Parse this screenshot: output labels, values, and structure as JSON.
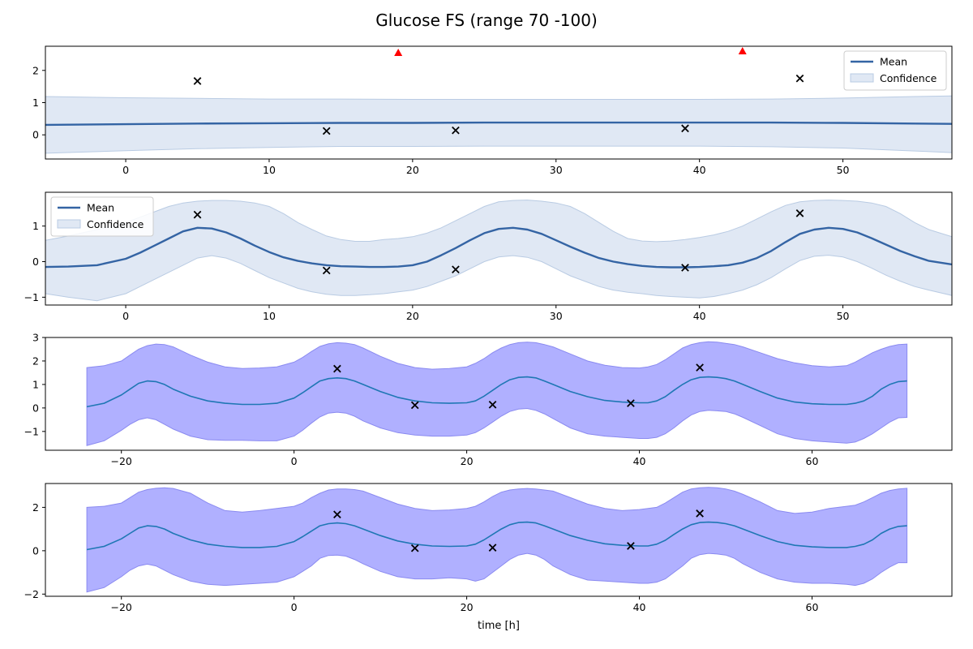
{
  "figure_title": "Glucose FS (range 70 -100)",
  "chart_data": [
    {
      "type": "line",
      "panel": 1,
      "xlim": [
        -5.6,
        57.6
      ],
      "ylim": [
        -0.75,
        2.75
      ],
      "xticks": [
        0,
        10,
        20,
        30,
        40,
        50
      ],
      "yticks": [
        0,
        1,
        2
      ],
      "xlabel": "",
      "legend": {
        "position": "upper right",
        "entries": [
          "Mean",
          "Confidence"
        ]
      },
      "mean": {
        "name": "Mean",
        "color": "#3464a4",
        "x": [
          -5.6,
          0,
          5,
          10,
          15,
          20,
          25,
          30,
          35,
          40,
          45,
          50,
          55,
          57.6
        ],
        "y": [
          0.31,
          0.33,
          0.35,
          0.36,
          0.37,
          0.37,
          0.38,
          0.38,
          0.38,
          0.38,
          0.38,
          0.37,
          0.35,
          0.34
        ]
      },
      "confidence": {
        "name": "Confidence",
        "color": "#c7d6eb",
        "x": [
          -5.6,
          0,
          5,
          10,
          15,
          20,
          25,
          30,
          35,
          40,
          45,
          50,
          55,
          57.6
        ],
        "lower": [
          -0.57,
          -0.49,
          -0.43,
          -0.39,
          -0.36,
          -0.36,
          -0.35,
          -0.35,
          -0.35,
          -0.35,
          -0.37,
          -0.41,
          -0.5,
          -0.55
        ],
        "upper": [
          1.19,
          1.15,
          1.13,
          1.11,
          1.11,
          1.1,
          1.1,
          1.1,
          1.1,
          1.1,
          1.11,
          1.14,
          1.19,
          1.21
        ]
      },
      "observations": {
        "x": [
          5,
          14,
          23,
          39,
          47
        ],
        "y": [
          1.67,
          0.12,
          0.14,
          0.2,
          1.75
        ]
      },
      "flags": {
        "color": "#ff0000",
        "x": [
          19,
          43
        ],
        "y": [
          2.55,
          2.6
        ]
      }
    },
    {
      "type": "line",
      "panel": 2,
      "xlim": [
        -5.6,
        57.6
      ],
      "ylim": [
        -1.22,
        1.95
      ],
      "xticks": [
        0,
        10,
        20,
        30,
        40,
        50
      ],
      "yticks": [
        -1,
        0,
        1
      ],
      "xlabel": "",
      "legend": {
        "position": "upper left",
        "entries": [
          "Mean",
          "Confidence"
        ]
      },
      "mean": {
        "name": "Mean",
        "color": "#3464a4",
        "x": [
          -5.6,
          -4,
          -2,
          0,
          1,
          2,
          3,
          4,
          5,
          6,
          7,
          8,
          9,
          10,
          11,
          12,
          13,
          14,
          15,
          16,
          17,
          18,
          19,
          20,
          21,
          22,
          23,
          24,
          25,
          26,
          27,
          28,
          29,
          30,
          31,
          32,
          33,
          34,
          35,
          36,
          37,
          38,
          39,
          40,
          41,
          42,
          43,
          44,
          45,
          46,
          47,
          48,
          49,
          50,
          51,
          52,
          53,
          54,
          55,
          56,
          57.6
        ],
        "y": [
          -0.15,
          -0.14,
          -0.1,
          0.08,
          0.25,
          0.45,
          0.65,
          0.85,
          0.95,
          0.93,
          0.82,
          0.65,
          0.45,
          0.27,
          0.12,
          0.02,
          -0.05,
          -0.1,
          -0.13,
          -0.14,
          -0.15,
          -0.15,
          -0.14,
          -0.1,
          0.0,
          0.18,
          0.38,
          0.6,
          0.8,
          0.92,
          0.95,
          0.9,
          0.78,
          0.6,
          0.42,
          0.25,
          0.1,
          0.0,
          -0.07,
          -0.12,
          -0.15,
          -0.16,
          -0.16,
          -0.15,
          -0.13,
          -0.1,
          -0.03,
          0.1,
          0.3,
          0.55,
          0.78,
          0.9,
          0.95,
          0.92,
          0.82,
          0.66,
          0.48,
          0.3,
          0.15,
          0.02,
          -0.08
        ]
      },
      "confidence": {
        "name": "Confidence",
        "color": "#c7d6eb",
        "x": [
          -5.6,
          -4,
          -2,
          0,
          1,
          2,
          3,
          4,
          5,
          6,
          7,
          8,
          9,
          10,
          11,
          12,
          13,
          14,
          15,
          16,
          17,
          18,
          19,
          20,
          21,
          22,
          23,
          24,
          25,
          26,
          27,
          28,
          29,
          30,
          31,
          32,
          33,
          34,
          35,
          36,
          37,
          38,
          39,
          40,
          41,
          42,
          43,
          44,
          45,
          46,
          47,
          48,
          49,
          50,
          51,
          52,
          53,
          54,
          55,
          56,
          57.6
        ],
        "lower": [
          -0.9,
          -1.0,
          -1.1,
          -0.9,
          -0.7,
          -0.5,
          -0.3,
          -0.1,
          0.1,
          0.17,
          0.1,
          -0.05,
          -0.25,
          -0.45,
          -0.6,
          -0.75,
          -0.85,
          -0.92,
          -0.95,
          -0.95,
          -0.93,
          -0.9,
          -0.85,
          -0.8,
          -0.7,
          -0.55,
          -0.4,
          -0.2,
          0.0,
          0.13,
          0.17,
          0.12,
          0.0,
          -0.2,
          -0.4,
          -0.55,
          -0.7,
          -0.8,
          -0.86,
          -0.9,
          -0.95,
          -0.98,
          -1.0,
          -1.02,
          -0.98,
          -0.9,
          -0.8,
          -0.65,
          -0.45,
          -0.2,
          0.03,
          0.15,
          0.18,
          0.13,
          0.0,
          -0.18,
          -0.38,
          -0.55,
          -0.7,
          -0.8,
          -0.95
        ]
      },
      "confidence_upper": [
        0.6,
        0.72,
        0.9,
        1.1,
        1.25,
        1.4,
        1.55,
        1.65,
        1.7,
        1.72,
        1.72,
        1.7,
        1.65,
        1.55,
        1.35,
        1.1,
        0.9,
        0.72,
        0.62,
        0.57,
        0.57,
        0.62,
        0.65,
        0.7,
        0.8,
        0.95,
        1.15,
        1.35,
        1.55,
        1.68,
        1.72,
        1.73,
        1.7,
        1.65,
        1.55,
        1.35,
        1.1,
        0.85,
        0.65,
        0.58,
        0.56,
        0.58,
        0.62,
        0.68,
        0.75,
        0.85,
        1.0,
        1.2,
        1.4,
        1.58,
        1.68,
        1.72,
        1.73,
        1.72,
        1.7,
        1.65,
        1.55,
        1.35,
        1.1,
        0.9,
        0.7
      ],
      "observations": {
        "x": [
          5,
          14,
          23,
          39,
          47
        ],
        "y": [
          1.32,
          -0.25,
          -0.22,
          -0.17,
          1.36
        ]
      }
    },
    {
      "type": "line",
      "panel": 3,
      "xlim": [
        -28.8,
        76.2
      ],
      "ylim": [
        -1.8,
        3.0
      ],
      "xticks": [
        -20,
        0,
        20,
        40,
        60
      ],
      "yticks": [
        -1,
        0,
        1,
        2,
        3
      ],
      "xlabel": "",
      "mean": {
        "color": "#1f77b4",
        "x": [
          -24,
          -22,
          -20,
          -19,
          -18,
          -17,
          -16,
          -15,
          -14,
          -12,
          -10,
          -8,
          -6,
          -4,
          -2,
          0,
          1,
          2,
          3,
          4,
          5,
          6,
          7,
          8,
          10,
          12,
          14,
          16,
          18,
          20,
          21,
          22,
          23,
          24,
          25,
          26,
          27,
          28,
          29,
          30,
          32,
          34,
          36,
          38,
          40,
          41,
          42,
          43,
          44,
          45,
          46,
          47,
          48,
          49,
          50,
          51,
          52,
          54,
          56,
          58,
          60,
          62,
          64,
          65,
          66,
          67,
          68,
          69,
          70,
          71
        ],
        "y": [
          0.05,
          0.2,
          0.55,
          0.8,
          1.05,
          1.15,
          1.12,
          1.0,
          0.8,
          0.5,
          0.3,
          0.2,
          0.15,
          0.15,
          0.2,
          0.42,
          0.65,
          0.9,
          1.15,
          1.25,
          1.28,
          1.25,
          1.15,
          1.0,
          0.7,
          0.45,
          0.3,
          0.22,
          0.2,
          0.22,
          0.3,
          0.5,
          0.75,
          1.0,
          1.2,
          1.3,
          1.32,
          1.28,
          1.15,
          1.0,
          0.7,
          0.48,
          0.32,
          0.25,
          0.22,
          0.22,
          0.3,
          0.48,
          0.75,
          1.0,
          1.2,
          1.3,
          1.32,
          1.3,
          1.25,
          1.15,
          1.0,
          0.7,
          0.42,
          0.25,
          0.18,
          0.15,
          0.15,
          0.2,
          0.3,
          0.5,
          0.8,
          1.0,
          1.12,
          1.15
        ]
      },
      "confidence": {
        "color": "#b0b0ff",
        "x": [
          -24,
          -22,
          -20,
          -19,
          -18,
          -17,
          -16,
          -15,
          -14,
          -12,
          -10,
          -8,
          -6,
          -4,
          -2,
          0,
          1,
          2,
          3,
          4,
          5,
          6,
          7,
          8,
          10,
          12,
          14,
          16,
          18,
          20,
          21,
          22,
          23,
          24,
          25,
          26,
          27,
          28,
          29,
          30,
          32,
          34,
          36,
          38,
          40,
          41,
          42,
          43,
          44,
          45,
          46,
          47,
          48,
          49,
          50,
          51,
          52,
          54,
          56,
          58,
          60,
          62,
          64,
          65,
          66,
          67,
          68,
          69,
          70,
          71
        ],
        "lower": [
          -1.6,
          -1.4,
          -0.95,
          -0.7,
          -0.5,
          -0.42,
          -0.5,
          -0.7,
          -0.9,
          -1.2,
          -1.35,
          -1.38,
          -1.38,
          -1.4,
          -1.4,
          -1.2,
          -0.95,
          -0.65,
          -0.38,
          -0.22,
          -0.18,
          -0.22,
          -0.35,
          -0.55,
          -0.85,
          -1.05,
          -1.15,
          -1.2,
          -1.2,
          -1.15,
          -1.05,
          -0.85,
          -0.6,
          -0.35,
          -0.15,
          -0.05,
          -0.02,
          -0.1,
          -0.25,
          -0.45,
          -0.85,
          -1.1,
          -1.2,
          -1.25,
          -1.3,
          -1.3,
          -1.25,
          -1.1,
          -0.85,
          -0.55,
          -0.3,
          -0.15,
          -0.1,
          -0.12,
          -0.15,
          -0.25,
          -0.4,
          -0.75,
          -1.1,
          -1.3,
          -1.4,
          -1.45,
          -1.5,
          -1.45,
          -1.3,
          -1.1,
          -0.85,
          -0.6,
          -0.42,
          -0.4
        ]
      },
      "confidence_upper": [
        1.72,
        1.8,
        2.0,
        2.25,
        2.5,
        2.65,
        2.72,
        2.7,
        2.6,
        2.25,
        1.95,
        1.75,
        1.68,
        1.7,
        1.75,
        1.95,
        2.15,
        2.4,
        2.62,
        2.73,
        2.78,
        2.76,
        2.7,
        2.55,
        2.2,
        1.9,
        1.72,
        1.65,
        1.68,
        1.75,
        1.9,
        2.1,
        2.35,
        2.55,
        2.7,
        2.78,
        2.8,
        2.78,
        2.7,
        2.6,
        2.3,
        2.0,
        1.82,
        1.72,
        1.7,
        1.75,
        1.85,
        2.05,
        2.3,
        2.55,
        2.7,
        2.78,
        2.82,
        2.8,
        2.75,
        2.7,
        2.6,
        2.35,
        2.1,
        1.92,
        1.8,
        1.75,
        1.8,
        1.95,
        2.15,
        2.35,
        2.5,
        2.62,
        2.7,
        2.72
      ],
      "observations": {
        "x": [
          5,
          14,
          23,
          39,
          47
        ],
        "y": [
          1.67,
          0.12,
          0.14,
          0.2,
          1.72
        ]
      }
    },
    {
      "type": "line",
      "panel": 4,
      "xlim": [
        -28.8,
        76.2
      ],
      "ylim": [
        -2.1,
        3.1
      ],
      "xticks": [
        -20,
        0,
        20,
        40,
        60
      ],
      "yticks": [
        -2,
        0,
        2
      ],
      "xlabel": "time [h]",
      "mean": {
        "color": "#1f77b4",
        "x": [
          -24,
          -22,
          -20,
          -19,
          -18,
          -17,
          -16,
          -15,
          -14,
          -12,
          -10,
          -8,
          -6,
          -4,
          -2,
          0,
          1,
          2,
          3,
          4,
          5,
          6,
          7,
          8,
          10,
          12,
          14,
          16,
          18,
          20,
          21,
          22,
          23,
          24,
          25,
          26,
          27,
          28,
          29,
          30,
          32,
          34,
          36,
          38,
          40,
          41,
          42,
          43,
          44,
          45,
          46,
          47,
          48,
          49,
          50,
          51,
          52,
          54,
          56,
          58,
          60,
          62,
          64,
          65,
          66,
          67,
          68,
          69,
          70,
          71
        ],
        "y": [
          0.05,
          0.2,
          0.55,
          0.8,
          1.05,
          1.15,
          1.12,
          1.0,
          0.8,
          0.5,
          0.3,
          0.2,
          0.15,
          0.15,
          0.2,
          0.42,
          0.65,
          0.9,
          1.15,
          1.25,
          1.28,
          1.25,
          1.15,
          1.0,
          0.7,
          0.45,
          0.3,
          0.22,
          0.2,
          0.22,
          0.3,
          0.5,
          0.75,
          1.0,
          1.2,
          1.3,
          1.32,
          1.28,
          1.15,
          1.0,
          0.7,
          0.48,
          0.32,
          0.25,
          0.22,
          0.22,
          0.3,
          0.48,
          0.75,
          1.0,
          1.2,
          1.3,
          1.32,
          1.3,
          1.25,
          1.15,
          1.0,
          0.7,
          0.42,
          0.25,
          0.18,
          0.15,
          0.15,
          0.2,
          0.3,
          0.5,
          0.8,
          1.0,
          1.12,
          1.15
        ]
      },
      "confidence": {
        "color": "#b0b0ff",
        "x": [
          -24,
          -22,
          -20,
          -19,
          -18,
          -17,
          -16,
          -15,
          -14,
          -12,
          -10,
          -8,
          -6,
          -4,
          -2,
          0,
          1,
          2,
          3,
          4,
          5,
          6,
          7,
          8,
          10,
          12,
          14,
          16,
          18,
          20,
          21,
          22,
          23,
          24,
          25,
          26,
          27,
          28,
          29,
          30,
          32,
          34,
          36,
          38,
          40,
          41,
          42,
          43,
          44,
          45,
          46,
          47,
          48,
          49,
          50,
          51,
          52,
          54,
          56,
          58,
          60,
          62,
          64,
          65,
          66,
          67,
          68,
          69,
          70,
          71
        ],
        "lower": [
          -1.9,
          -1.7,
          -1.2,
          -0.9,
          -0.7,
          -0.62,
          -0.7,
          -0.9,
          -1.1,
          -1.4,
          -1.55,
          -1.6,
          -1.55,
          -1.5,
          -1.45,
          -1.2,
          -0.95,
          -0.7,
          -0.35,
          -0.22,
          -0.2,
          -0.25,
          -0.4,
          -0.6,
          -0.95,
          -1.2,
          -1.3,
          -1.3,
          -1.25,
          -1.3,
          -1.4,
          -1.3,
          -1.0,
          -0.7,
          -0.4,
          -0.2,
          -0.12,
          -0.2,
          -0.4,
          -0.7,
          -1.1,
          -1.35,
          -1.4,
          -1.45,
          -1.5,
          -1.5,
          -1.45,
          -1.3,
          -1.0,
          -0.7,
          -0.35,
          -0.18,
          -0.12,
          -0.15,
          -0.2,
          -0.35,
          -0.6,
          -1.0,
          -1.3,
          -1.45,
          -1.5,
          -1.5,
          -1.55,
          -1.6,
          -1.5,
          -1.3,
          -1.0,
          -0.75,
          -0.55,
          -0.55
        ]
      },
      "confidence_upper": [
        2.0,
        2.05,
        2.2,
        2.45,
        2.7,
        2.82,
        2.88,
        2.9,
        2.87,
        2.65,
        2.2,
        1.85,
        1.78,
        1.85,
        1.95,
        2.05,
        2.2,
        2.45,
        2.65,
        2.8,
        2.85,
        2.85,
        2.82,
        2.75,
        2.45,
        2.15,
        1.95,
        1.85,
        1.88,
        1.95,
        2.05,
        2.25,
        2.5,
        2.7,
        2.8,
        2.85,
        2.87,
        2.85,
        2.8,
        2.75,
        2.45,
        2.15,
        1.95,
        1.85,
        1.9,
        1.95,
        2.0,
        2.2,
        2.45,
        2.7,
        2.85,
        2.9,
        2.92,
        2.9,
        2.85,
        2.75,
        2.6,
        2.25,
        1.85,
        1.72,
        1.78,
        1.95,
        2.05,
        2.1,
        2.25,
        2.45,
        2.65,
        2.78,
        2.85,
        2.88
      ],
      "observations": {
        "x": [
          5,
          14,
          23,
          39,
          47
        ],
        "y": [
          1.67,
          0.12,
          0.14,
          0.22,
          1.72
        ]
      }
    }
  ]
}
